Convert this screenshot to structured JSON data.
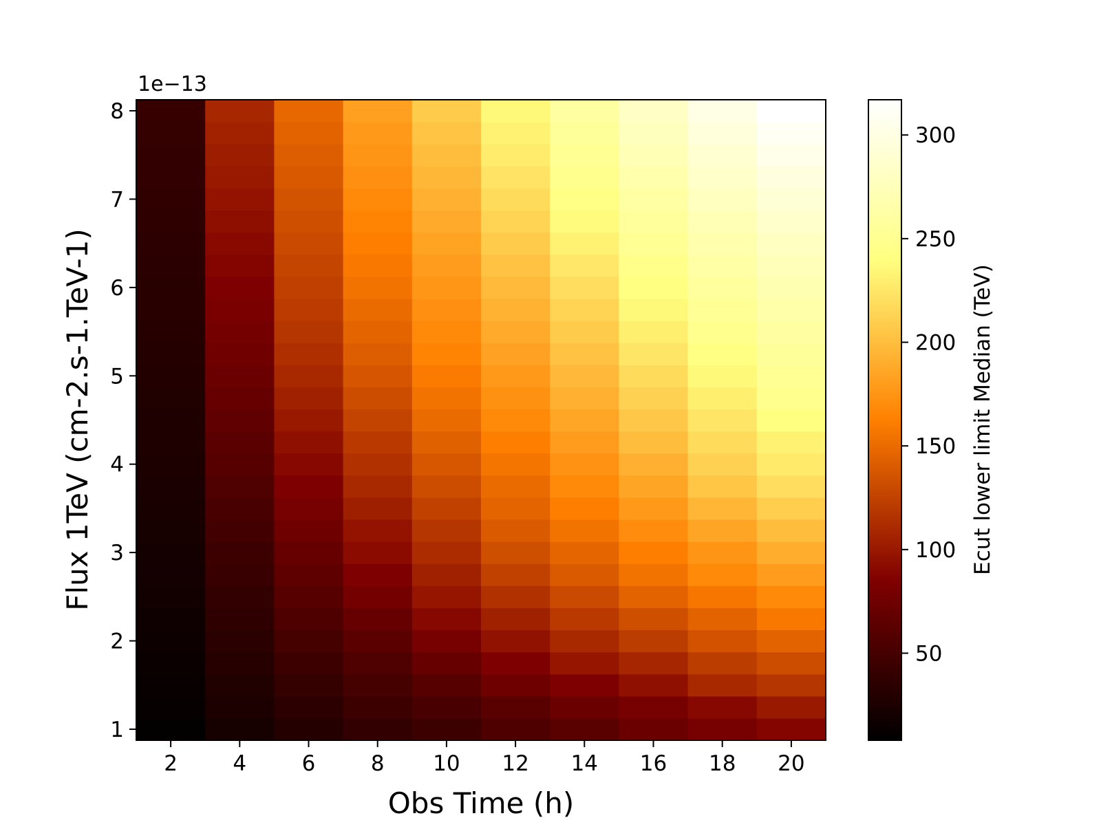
{
  "chart_data": {
    "type": "heatmap",
    "title": "",
    "xlabel": "Obs Time (h)",
    "ylabel": "Flux 1TeV (cm-2.s-1.TeV-1)",
    "y_offset_text": "1e−13",
    "xlim": [
      1,
      21
    ],
    "ylim": [
      0.875,
      8.125
    ],
    "x_ticks": [
      2,
      4,
      6,
      8,
      10,
      12,
      14,
      16,
      18,
      20
    ],
    "x_tick_labels": [
      "2",
      "4",
      "6",
      "8",
      "10",
      "12",
      "14",
      "16",
      "18",
      "20"
    ],
    "y_ticks": [
      1,
      2,
      3,
      4,
      5,
      6,
      7,
      8
    ],
    "y_tick_labels": [
      "1",
      "2",
      "3",
      "4",
      "5",
      "6",
      "7",
      "8"
    ],
    "x": [
      2,
      4,
      6,
      8,
      10,
      12,
      14,
      16,
      18,
      20
    ],
    "y": [
      1,
      1.25,
      1.5,
      1.75,
      2,
      2.25,
      2.5,
      2.75,
      3,
      3.25,
      3.5,
      3.75,
      4,
      4.25,
      4.5,
      4.75,
      5,
      5.25,
      5.5,
      5.75,
      6,
      6.25,
      6.5,
      6.75,
      7,
      7.25,
      7.5,
      7.75,
      8
    ],
    "colormap": "afmhot",
    "colorbar": {
      "label": "Ecut lower limit Median (TeV)",
      "range": [
        8,
        317
      ],
      "ticks": [
        50,
        100,
        150,
        200,
        250,
        300
      ],
      "tick_labels": [
        "50",
        "100",
        "150",
        "200",
        "250",
        "300"
      ]
    },
    "grid": false,
    "values": [
      [
        10,
        22,
        30,
        38,
        45,
        55,
        62,
        72,
        80,
        88
      ],
      [
        12,
        25,
        35,
        45,
        52,
        62,
        72,
        80,
        90,
        100
      ],
      [
        13,
        28,
        40,
        50,
        60,
        75,
        85,
        95,
        110,
        118
      ],
      [
        14,
        31,
        45,
        56,
        70,
        85,
        98,
        108,
        122,
        132
      ],
      [
        16,
        34,
        50,
        63,
        80,
        96,
        110,
        122,
        135,
        145
      ],
      [
        17,
        36,
        55,
        70,
        90,
        105,
        120,
        133,
        145,
        158
      ],
      [
        19,
        39,
        60,
        78,
        98,
        115,
        130,
        145,
        157,
        168
      ],
      [
        20,
        42,
        65,
        85,
        105,
        125,
        140,
        155,
        168,
        180
      ],
      [
        21,
        45,
        70,
        92,
        112,
        133,
        147,
        162,
        175,
        190
      ],
      [
        22,
        48,
        75,
        97,
        118,
        140,
        155,
        170,
        185,
        200
      ],
      [
        23,
        52,
        80,
        104,
        125,
        146,
        162,
        178,
        195,
        210
      ],
      [
        24,
        56,
        85,
        110,
        132,
        150,
        168,
        185,
        205,
        220
      ],
      [
        25,
        60,
        90,
        115,
        138,
        156,
        174,
        192,
        212,
        227
      ],
      [
        26,
        63,
        95,
        120,
        144,
        162,
        180,
        200,
        218,
        232
      ],
      [
        27,
        66,
        100,
        126,
        150,
        168,
        186,
        206,
        224,
        240
      ],
      [
        28,
        70,
        105,
        132,
        155,
        173,
        192,
        212,
        230,
        248
      ],
      [
        29,
        73,
        110,
        137,
        160,
        178,
        197,
        218,
        236,
        252
      ],
      [
        30,
        76,
        114,
        142,
        165,
        183,
        203,
        224,
        242,
        256
      ],
      [
        31,
        79,
        118,
        146,
        168,
        188,
        208,
        230,
        248,
        260
      ],
      [
        32,
        82,
        121,
        150,
        172,
        193,
        214,
        236,
        253,
        265
      ],
      [
        33,
        85,
        124,
        155,
        176,
        198,
        220,
        241,
        258,
        270
      ],
      [
        34,
        88,
        127,
        158,
        180,
        203,
        226,
        246,
        263,
        275
      ],
      [
        35,
        91,
        130,
        162,
        184,
        208,
        232,
        252,
        268,
        280
      ],
      [
        36,
        94,
        133,
        165,
        188,
        213,
        238,
        257,
        273,
        286
      ],
      [
        37,
        97,
        136,
        168,
        192,
        218,
        243,
        262,
        279,
        292
      ],
      [
        38,
        100,
        139,
        172,
        196,
        223,
        248,
        267,
        284,
        298
      ],
      [
        39,
        103,
        142,
        175,
        200,
        228,
        252,
        272,
        290,
        304
      ],
      [
        40,
        106,
        145,
        178,
        204,
        232,
        256,
        277,
        296,
        310
      ],
      [
        41,
        109,
        148,
        182,
        208,
        236,
        260,
        282,
        302,
        317
      ]
    ]
  }
}
